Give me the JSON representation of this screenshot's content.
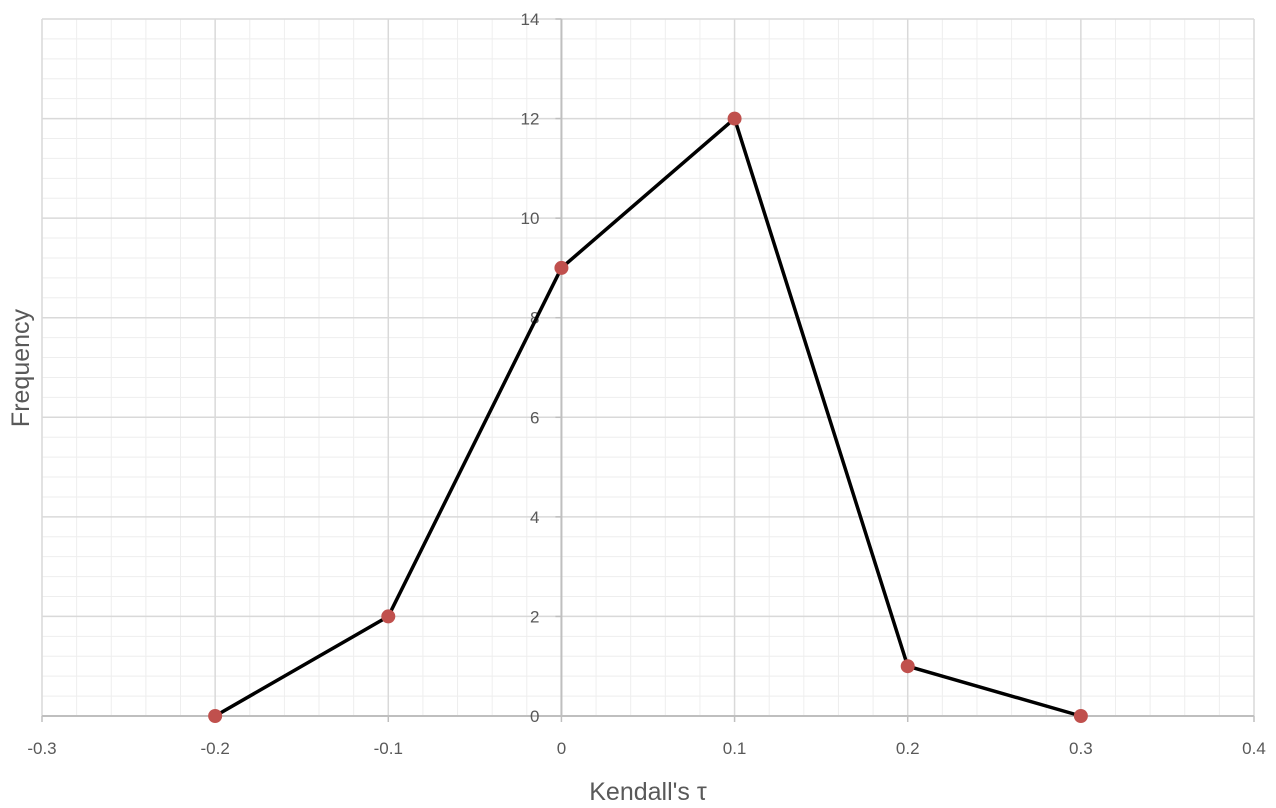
{
  "chart_data": {
    "type": "line",
    "title": "",
    "xlabel": "Kendall's τ",
    "ylabel": "Frequency",
    "xlim": [
      -0.3,
      0.4
    ],
    "ylim": [
      0,
      14
    ],
    "x_ticks": [
      "-0.3",
      "-0.2",
      "-0.1",
      "0",
      "0.1",
      "0.2",
      "0.3",
      "0.4"
    ],
    "y_ticks": [
      "0",
      "2",
      "4",
      "6",
      "8",
      "10",
      "12",
      "14"
    ],
    "grid": true,
    "legend": "none",
    "series": [
      {
        "x": [
          -0.2,
          -0.1,
          0,
          0.1,
          0.2,
          0.3
        ],
        "y": [
          0,
          2,
          9,
          12,
          1,
          0
        ],
        "line_color": "#000000",
        "marker_color": "#c0504d"
      }
    ],
    "colors": {
      "major_grid": "#d9d9d9",
      "minor_grid": "#eeeeee",
      "axis": "#bfbfbf",
      "text": "#595959"
    }
  }
}
